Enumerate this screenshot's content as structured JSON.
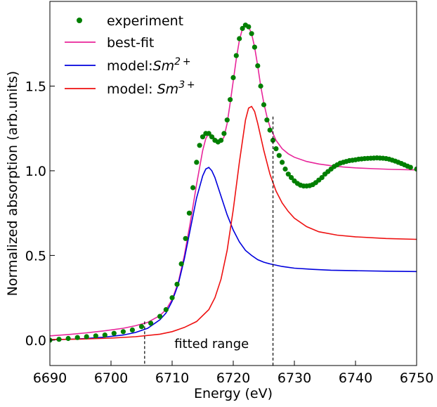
{
  "chart_data": {
    "type": "line",
    "xlabel": "Energy (eV)",
    "ylabel": "Normalized absorption (arb.units)",
    "xlim": [
      6690,
      6750
    ],
    "ylim": [
      -0.15,
      2.0
    ],
    "xticks": [
      6690,
      6700,
      6710,
      6720,
      6730,
      6740,
      6750
    ],
    "xtick_labels": [
      "6690",
      "6700",
      "6710",
      "6720",
      "6730",
      "6740",
      "6750"
    ],
    "yticks": [
      0.0,
      0.5,
      1.0,
      1.5
    ],
    "ytick_labels": [
      "0.0",
      "0.5",
      "1.0",
      "1.5"
    ],
    "grid": false,
    "legend_position": "top-left",
    "annotation": "fitted range",
    "fitted_range": [
      6705.5,
      6726.5
    ],
    "series": [
      {
        "name": "experiment",
        "kind": "scatter",
        "color": "#007f00",
        "x": [
          6690.0,
          6691.5,
          6693.0,
          6694.5,
          6696.0,
          6697.5,
          6699.0,
          6700.5,
          6702.0,
          6703.5,
          6705.0,
          6706.5,
          6708.0,
          6709.0,
          6710.0,
          6710.8,
          6711.5,
          6712.2,
          6712.8,
          6713.4,
          6714.0,
          6714.5,
          6715.0,
          6715.5,
          6716.0,
          6716.5,
          6717.0,
          6717.5,
          6718.0,
          6718.5,
          6719.0,
          6719.5,
          6720.0,
          6720.5,
          6721.0,
          6721.5,
          6722.0,
          6722.5,
          6723.0,
          6723.5,
          6724.0,
          6724.5,
          6725.0,
          6725.5,
          6726.0,
          6726.5,
          6727.0,
          6727.5,
          6728.0,
          6728.5,
          6729.0,
          6729.5,
          6730.0,
          6730.5,
          6731.0,
          6731.5,
          6732.0,
          6732.5,
          6733.0,
          6733.5,
          6734.0,
          6734.5,
          6735.0,
          6735.5,
          6736.0,
          6736.5,
          6737.0,
          6737.5,
          6738.0,
          6738.5,
          6739.0,
          6739.5,
          6740.0,
          6740.5,
          6741.0,
          6741.5,
          6742.0,
          6742.5,
          6743.0,
          6743.5,
          6744.0,
          6744.5,
          6745.0,
          6745.5,
          6746.0,
          6746.5,
          6747.0,
          6747.5,
          6748.0,
          6748.5,
          6749.0,
          6750.0
        ],
        "y": [
          0.0,
          0.005,
          0.01,
          0.015,
          0.02,
          0.025,
          0.03,
          0.04,
          0.05,
          0.06,
          0.08,
          0.1,
          0.14,
          0.18,
          0.25,
          0.33,
          0.45,
          0.6,
          0.75,
          0.9,
          1.05,
          1.15,
          1.2,
          1.22,
          1.22,
          1.2,
          1.18,
          1.17,
          1.18,
          1.22,
          1.3,
          1.42,
          1.55,
          1.68,
          1.78,
          1.84,
          1.86,
          1.85,
          1.81,
          1.73,
          1.62,
          1.5,
          1.39,
          1.3,
          1.24,
          1.18,
          1.13,
          1.09,
          1.05,
          1.01,
          0.98,
          0.96,
          0.94,
          0.925,
          0.915,
          0.91,
          0.91,
          0.912,
          0.918,
          0.93,
          0.945,
          0.96,
          0.98,
          0.995,
          1.01,
          1.025,
          1.035,
          1.045,
          1.05,
          1.055,
          1.06,
          1.062,
          1.065,
          1.068,
          1.07,
          1.072,
          1.073,
          1.074,
          1.075,
          1.076,
          1.075,
          1.074,
          1.072,
          1.068,
          1.063,
          1.057,
          1.05,
          1.043,
          1.035,
          1.027,
          1.02,
          1.01
        ]
      },
      {
        "name": "best-fit",
        "kind": "line",
        "color": "#e8259a",
        "x": [
          6690,
          6693,
          6696,
          6699,
          6702,
          6704,
          6706,
          6708,
          6709,
          6710,
          6711,
          6712,
          6713,
          6714,
          6715,
          6715.5,
          6716,
          6716.5,
          6717,
          6717.5,
          6718,
          6718.5,
          6719,
          6719.5,
          6720,
          6720.5,
          6721,
          6721.5,
          6722,
          6722.5,
          6723,
          6723.5,
          6724,
          6724.5,
          6725,
          6725.5,
          6726,
          6727,
          6728,
          6729,
          6730,
          6732,
          6734,
          6736,
          6738,
          6740,
          6743,
          6746,
          6750
        ],
        "y": [
          0.025,
          0.033,
          0.043,
          0.055,
          0.07,
          0.085,
          0.105,
          0.145,
          0.18,
          0.24,
          0.34,
          0.5,
          0.7,
          0.92,
          1.12,
          1.19,
          1.22,
          1.21,
          1.19,
          1.17,
          1.17,
          1.2,
          1.28,
          1.4,
          1.53,
          1.66,
          1.77,
          1.84,
          1.86,
          1.85,
          1.81,
          1.73,
          1.62,
          1.5,
          1.4,
          1.32,
          1.26,
          1.18,
          1.13,
          1.1,
          1.08,
          1.055,
          1.04,
          1.03,
          1.022,
          1.017,
          1.012,
          1.008,
          1.005
        ]
      },
      {
        "name": "model:Sm2+",
        "kind": "line",
        "color": "#0000dd",
        "x": [
          6690,
          6693,
          6696,
          6699,
          6702,
          6704,
          6706,
          6708,
          6709,
          6710,
          6711,
          6712,
          6713,
          6714,
          6715,
          6715.5,
          6716,
          6716.5,
          6717,
          6718,
          6719,
          6720,
          6721,
          6722,
          6723,
          6724,
          6725,
          6726,
          6728,
          6730,
          6733,
          6736,
          6740,
          6745,
          6750
        ],
        "y": [
          0.002,
          0.005,
          0.01,
          0.018,
          0.03,
          0.045,
          0.07,
          0.12,
          0.16,
          0.23,
          0.33,
          0.48,
          0.66,
          0.84,
          0.97,
          1.01,
          1.02,
          1.0,
          0.96,
          0.85,
          0.74,
          0.65,
          0.58,
          0.53,
          0.5,
          0.475,
          0.46,
          0.45,
          0.435,
          0.425,
          0.418,
          0.413,
          0.41,
          0.407,
          0.405
        ]
      },
      {
        "name": "model: Sm3+",
        "kind": "line",
        "color": "#ee1111",
        "x": [
          6690,
          6695,
          6700,
          6704,
          6708,
          6710,
          6712,
          6714,
          6716,
          6717,
          6718,
          6719,
          6720,
          6721,
          6722,
          6722.5,
          6723,
          6723.5,
          6724,
          6725,
          6726,
          6727,
          6728,
          6729,
          6730,
          6732,
          6734,
          6737,
          6740,
          6745,
          6750
        ],
        "y": [
          0.003,
          0.006,
          0.012,
          0.02,
          0.035,
          0.05,
          0.075,
          0.11,
          0.18,
          0.25,
          0.36,
          0.53,
          0.77,
          1.05,
          1.3,
          1.37,
          1.38,
          1.35,
          1.28,
          1.12,
          0.98,
          0.88,
          0.81,
          0.76,
          0.72,
          0.67,
          0.64,
          0.62,
          0.61,
          0.6,
          0.595
        ]
      }
    ]
  }
}
